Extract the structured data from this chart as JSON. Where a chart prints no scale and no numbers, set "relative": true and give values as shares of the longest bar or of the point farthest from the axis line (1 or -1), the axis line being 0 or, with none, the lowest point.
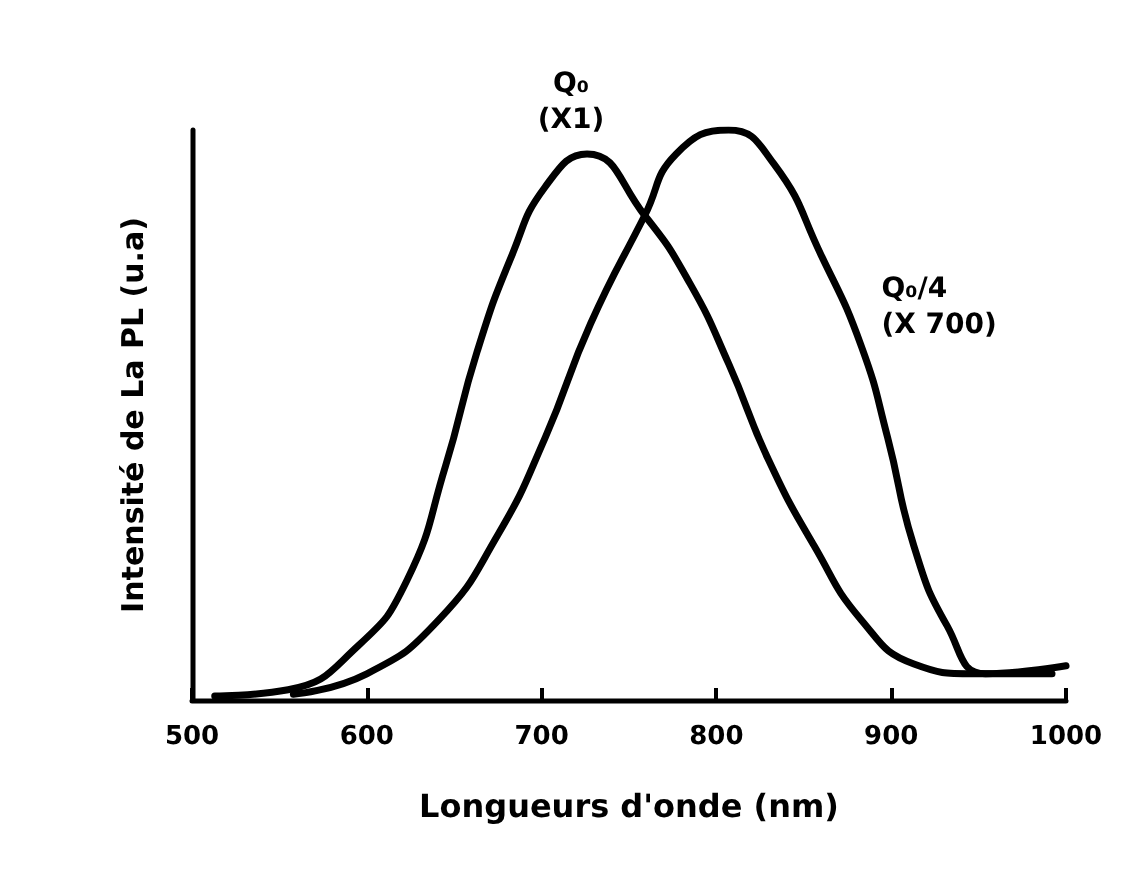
{
  "chart_data": {
    "type": "line",
    "relative": true,
    "xlabel": "Longueurs d'onde (nm)",
    "ylabel": "Intensité de La PL (u.a)",
    "xlim": [
      500,
      1000
    ],
    "xticks": [
      500,
      600,
      700,
      800,
      900,
      1000
    ],
    "grid": false,
    "legend": false,
    "marker": "none",
    "line_style": "solid",
    "series": [
      {
        "name": "Q₀ (X1)",
        "color": "#000000",
        "x": [
          513,
          555,
          595,
          623,
          645,
          663,
          683,
          702,
          726,
          759,
          785,
          807,
          830,
          856,
          883,
          913,
          947,
          992
        ],
        "values": [
          0.007,
          0.018,
          0.095,
          0.21,
          0.41,
          0.61,
          0.78,
          0.9,
          0.958,
          0.85,
          0.73,
          0.59,
          0.42,
          0.27,
          0.14,
          0.063,
          0.046,
          0.046
        ]
      },
      {
        "name": "Q₀/4 (X 700)",
        "color": "#000000",
        "x": [
          558,
          600,
          641,
          675,
          702,
          728,
          759,
          777,
          807,
          833,
          860,
          883,
          898,
          913,
          932,
          954,
          1000
        ],
        "values": [
          0.01,
          0.046,
          0.14,
          0.29,
          0.46,
          0.66,
          0.85,
          0.958,
          1,
          0.94,
          0.78,
          0.62,
          0.46,
          0.27,
          0.13,
          0.046,
          0.06
        ]
      }
    ]
  }
}
